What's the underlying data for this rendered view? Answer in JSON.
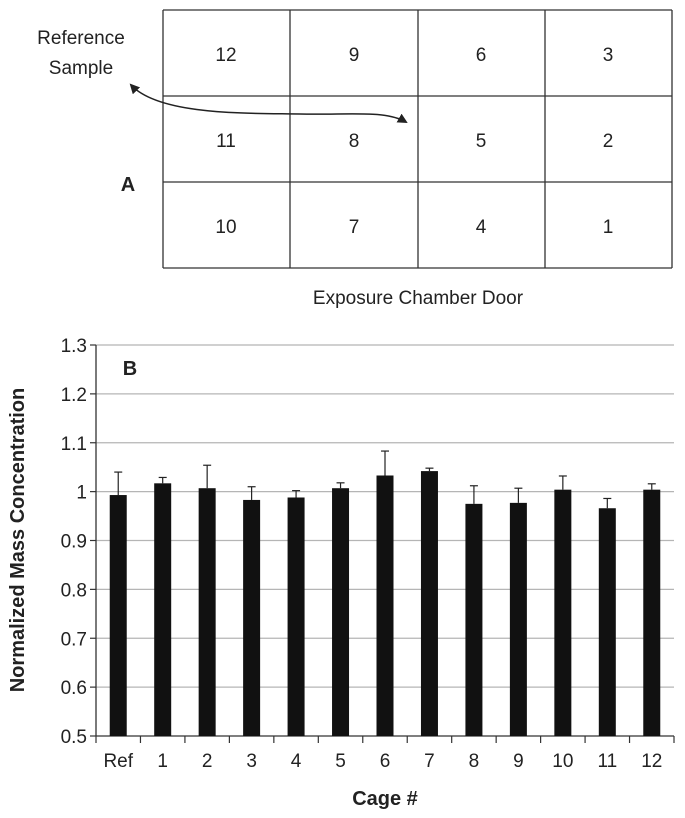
{
  "panel_a": {
    "letter": "A",
    "reference_label_line1": "Reference",
    "reference_label_line2": "Sample",
    "door_label": "Exposure Chamber Door",
    "grid": [
      [
        "12",
        "9",
        "6",
        "3"
      ],
      [
        "11",
        "8",
        "5",
        "2"
      ],
      [
        "10",
        "7",
        "4",
        "1"
      ]
    ]
  },
  "chart_data": {
    "type": "bar",
    "panel_letter": "B",
    "categories": [
      "Ref",
      "1",
      "2",
      "3",
      "4",
      "5",
      "6",
      "7",
      "8",
      "9",
      "10",
      "11",
      "12"
    ],
    "values": [
      0.993,
      1.017,
      1.007,
      0.983,
      0.988,
      1.007,
      1.033,
      1.042,
      0.975,
      0.977,
      1.004,
      0.966,
      1.004
    ],
    "error_plus": [
      0.047,
      0.012,
      0.047,
      0.027,
      0.014,
      0.011,
      0.05,
      0.006,
      0.037,
      0.03,
      0.028,
      0.02,
      0.012
    ],
    "xlabel": "Cage #",
    "ylabel": "Normalized Mass Concentration",
    "ylim": [
      0.5,
      1.3
    ],
    "yticks": [
      "0.5",
      "0.6",
      "0.7",
      "0.8",
      "0.9",
      "1",
      "1.1",
      "1.2",
      "1.3"
    ],
    "grid": true,
    "bar_color": "#111111",
    "grid_color": "#b5b5b5"
  }
}
